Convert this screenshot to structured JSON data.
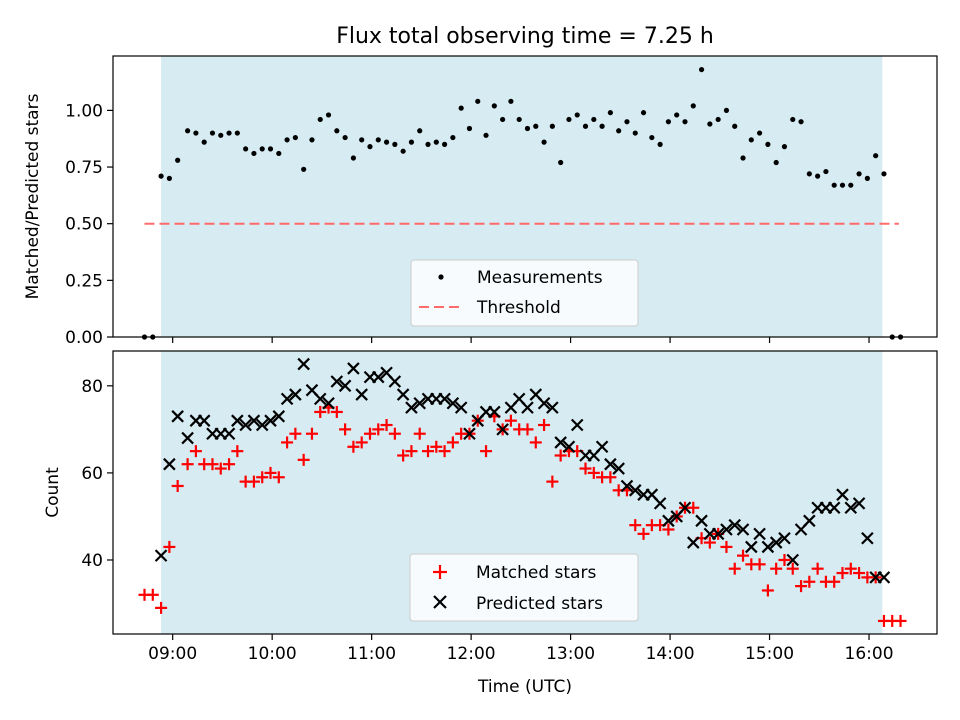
{
  "chart_data": [
    {
      "type": "scatter",
      "title": "Flux total observing time = 7.25 h",
      "xlabel": "",
      "ylabel": "Matched/Predicted stars",
      "xlim": [
        "08:24",
        "16:41"
      ],
      "ylim": [
        0,
        1.24
      ],
      "yticks": [
        "0.00",
        "0.25",
        "0.50",
        "0.75",
        "1.00"
      ],
      "xticks": [
        "09:00",
        "10:00",
        "11:00",
        "12:00",
        "13:00",
        "14:00",
        "15:00",
        "16:00"
      ],
      "shaded_span": [
        "08:53",
        "16:08"
      ],
      "shaded_color": "#add8e6",
      "threshold": {
        "name": "Threshold",
        "value": 0.5,
        "x": [
          "08:43",
          "16:18"
        ],
        "color": "#ff6b6b",
        "style": "dashed"
      },
      "legend": {
        "position": "bottom-center",
        "entries": [
          "Measurements",
          "Threshold"
        ]
      },
      "series": [
        {
          "name": "Measurements",
          "marker": "dot",
          "color": "#000000",
          "x": [
            "08:43",
            "08:48",
            "08:53",
            "08:58",
            "09:03",
            "09:09",
            "09:14",
            "09:19",
            "09:24",
            "09:29",
            "09:34",
            "09:39",
            "09:44",
            "09:49",
            "09:54",
            "09:59",
            "10:04",
            "10:09",
            "10:14",
            "10:19",
            "10:24",
            "10:29",
            "10:34",
            "10:39",
            "10:44",
            "10:49",
            "10:54",
            "10:59",
            "11:04",
            "11:09",
            "11:14",
            "11:19",
            "11:24",
            "11:29",
            "11:34",
            "11:39",
            "11:44",
            "11:49",
            "11:54",
            "11:59",
            "12:04",
            "12:09",
            "12:14",
            "12:19",
            "12:24",
            "12:29",
            "12:34",
            "12:39",
            "12:44",
            "12:49",
            "12:54",
            "12:59",
            "13:04",
            "13:09",
            "13:14",
            "13:19",
            "13:24",
            "13:29",
            "13:34",
            "13:39",
            "13:44",
            "13:49",
            "13:54",
            "13:59",
            "14:04",
            "14:09",
            "14:14",
            "14:19",
            "14:24",
            "14:29",
            "14:34",
            "14:39",
            "14:44",
            "14:49",
            "14:54",
            "14:59",
            "15:04",
            "15:09",
            "15:14",
            "15:19",
            "15:24",
            "15:29",
            "15:34",
            "15:39",
            "15:44",
            "15:49",
            "15:54",
            "15:59",
            "16:04",
            "16:09",
            "16:14",
            "16:19"
          ],
          "y": [
            0.0,
            0.0,
            0.71,
            0.7,
            0.78,
            0.91,
            0.9,
            0.86,
            0.9,
            0.89,
            0.9,
            0.9,
            0.83,
            0.81,
            0.83,
            0.83,
            0.81,
            0.87,
            0.88,
            0.74,
            0.87,
            0.96,
            0.98,
            0.91,
            0.88,
            0.79,
            0.87,
            0.84,
            0.87,
            0.86,
            0.85,
            0.82,
            0.86,
            0.91,
            0.85,
            0.86,
            0.85,
            0.88,
            1.01,
            0.92,
            1.04,
            0.89,
            1.02,
            0.96,
            1.04,
            0.96,
            0.92,
            0.93,
            0.86,
            0.93,
            0.77,
            0.96,
            0.98,
            0.93,
            0.96,
            0.93,
            0.99,
            0.91,
            0.95,
            0.9,
            0.99,
            0.88,
            0.85,
            0.95,
            0.98,
            0.95,
            1.02,
            1.18,
            0.94,
            0.96,
            1.0,
            0.93,
            0.79,
            0.87,
            0.9,
            0.85,
            0.77,
            0.84,
            0.96,
            0.95,
            0.72,
            0.71,
            0.73,
            0.67,
            0.67,
            0.67,
            0.72,
            0.7,
            0.8,
            0.72,
            0.0,
            0.0
          ]
        }
      ]
    },
    {
      "type": "scatter",
      "title": "",
      "xlabel": "Time (UTC)",
      "ylabel": "Count",
      "xlim": [
        "08:24",
        "16:41"
      ],
      "ylim": [
        23,
        88
      ],
      "yticks": [
        "40",
        "60",
        "80"
      ],
      "xticks": [
        "09:00",
        "10:00",
        "11:00",
        "12:00",
        "13:00",
        "14:00",
        "15:00",
        "16:00"
      ],
      "shaded_span": [
        "08:53",
        "16:08"
      ],
      "shaded_color": "#add8e6",
      "legend": {
        "position": "bottom-center",
        "entries": [
          "Matched stars",
          "Predicted stars"
        ]
      },
      "series": [
        {
          "name": "Matched stars",
          "marker": "plus",
          "color": "#ff0000",
          "x": [
            "08:43",
            "08:48",
            "08:53",
            "08:58",
            "09:03",
            "09:09",
            "09:14",
            "09:19",
            "09:24",
            "09:29",
            "09:34",
            "09:39",
            "09:44",
            "09:49",
            "09:54",
            "09:59",
            "10:04",
            "10:09",
            "10:14",
            "10:19",
            "10:24",
            "10:29",
            "10:34",
            "10:39",
            "10:44",
            "10:49",
            "10:54",
            "10:59",
            "11:04",
            "11:09",
            "11:14",
            "11:19",
            "11:24",
            "11:29",
            "11:34",
            "11:39",
            "11:44",
            "11:49",
            "11:54",
            "11:59",
            "12:04",
            "12:09",
            "12:14",
            "12:19",
            "12:24",
            "12:29",
            "12:34",
            "12:39",
            "12:44",
            "12:49",
            "12:54",
            "12:59",
            "13:04",
            "13:09",
            "13:14",
            "13:19",
            "13:24",
            "13:29",
            "13:34",
            "13:39",
            "13:44",
            "13:49",
            "13:54",
            "13:59",
            "14:04",
            "14:09",
            "14:14",
            "14:19",
            "14:24",
            "14:29",
            "14:34",
            "14:39",
            "14:44",
            "14:49",
            "14:54",
            "14:59",
            "15:04",
            "15:09",
            "15:14",
            "15:19",
            "15:24",
            "15:29",
            "15:34",
            "15:39",
            "15:44",
            "15:49",
            "15:54",
            "15:59",
            "16:04",
            "16:09",
            "16:14",
            "16:19"
          ],
          "y": [
            32,
            32,
            29,
            43,
            57,
            62,
            65,
            62,
            62,
            61,
            62,
            65,
            58,
            58,
            59,
            60,
            59,
            67,
            69,
            63,
            69,
            74,
            75,
            74,
            70,
            66,
            67,
            69,
            70,
            71,
            69,
            64,
            65,
            69,
            65,
            66,
            65,
            67,
            69,
            69,
            72,
            65,
            73,
            70,
            72,
            70,
            70,
            67,
            71,
            58,
            64,
            65,
            65,
            61,
            60,
            59,
            59,
            56,
            56,
            48,
            46,
            48,
            48,
            47,
            50,
            52,
            52,
            45,
            44,
            46,
            43,
            38,
            41,
            39,
            39,
            33,
            38,
            40,
            38,
            34,
            35,
            38,
            35,
            35,
            37,
            38,
            37,
            36,
            36,
            26,
            26,
            26
          ]
        },
        {
          "name": "Predicted stars",
          "marker": "x",
          "color": "#000000",
          "x": [
            "08:53",
            "08:58",
            "09:03",
            "09:09",
            "09:14",
            "09:19",
            "09:24",
            "09:29",
            "09:34",
            "09:39",
            "09:44",
            "09:49",
            "09:54",
            "09:59",
            "10:04",
            "10:09",
            "10:14",
            "10:19",
            "10:24",
            "10:29",
            "10:34",
            "10:39",
            "10:44",
            "10:49",
            "10:54",
            "10:59",
            "11:04",
            "11:09",
            "11:14",
            "11:19",
            "11:24",
            "11:29",
            "11:34",
            "11:39",
            "11:44",
            "11:49",
            "11:54",
            "11:59",
            "12:04",
            "12:09",
            "12:14",
            "12:19",
            "12:24",
            "12:29",
            "12:34",
            "12:39",
            "12:44",
            "12:49",
            "12:54",
            "12:59",
            "13:04",
            "13:09",
            "13:14",
            "13:19",
            "13:24",
            "13:29",
            "13:34",
            "13:39",
            "13:44",
            "13:49",
            "13:54",
            "13:59",
            "14:04",
            "14:09",
            "14:14",
            "14:19",
            "14:24",
            "14:29",
            "14:34",
            "14:39",
            "14:44",
            "14:49",
            "14:54",
            "14:59",
            "15:04",
            "15:09",
            "15:14",
            "15:19",
            "15:24",
            "15:29",
            "15:34",
            "15:39",
            "15:44",
            "15:49",
            "15:54",
            "15:59",
            "16:04",
            "16:09"
          ],
          "y": [
            41,
            62,
            73,
            68,
            72,
            72,
            69,
            69,
            69,
            72,
            71,
            72,
            71,
            72,
            73,
            77,
            78,
            85,
            79,
            77,
            76,
            81,
            80,
            84,
            78,
            82,
            82,
            83,
            81,
            78,
            75,
            76,
            77,
            77,
            77,
            76,
            75,
            69,
            72,
            74,
            74,
            70,
            75,
            77,
            75,
            78,
            76,
            75,
            67,
            66,
            71,
            64,
            64,
            66,
            62,
            61,
            57,
            56,
            55,
            55,
            53,
            49,
            50,
            52,
            44,
            49,
            46,
            46,
            47,
            48,
            47,
            43,
            46,
            43,
            44,
            45,
            40,
            47,
            49,
            52,
            52,
            52,
            55,
            52,
            53,
            45,
            36,
            36
          ]
        }
      ]
    }
  ]
}
